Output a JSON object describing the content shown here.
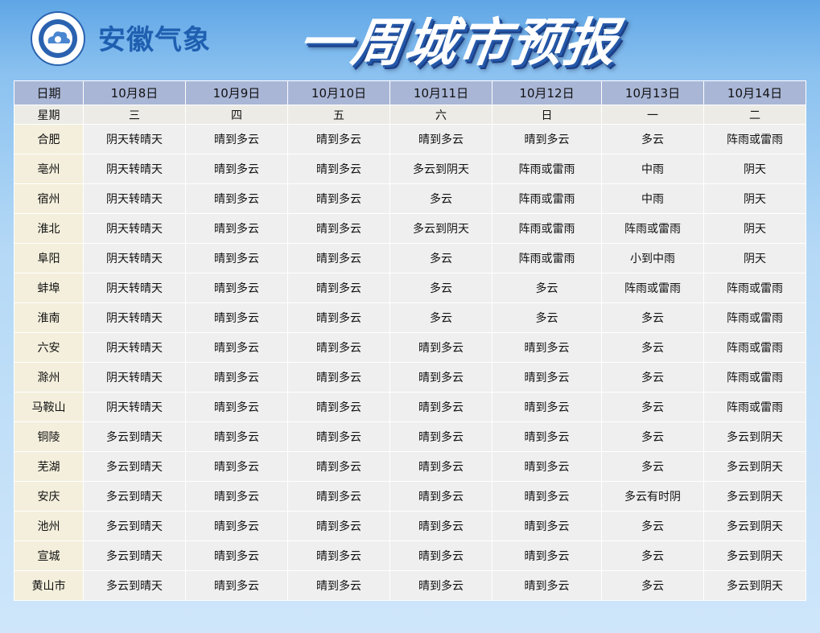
{
  "header": {
    "brand": "安徽气象",
    "title": "一周城市预报"
  },
  "table": {
    "columns": [
      "日期",
      "10月8日",
      "10月9日",
      "10月10日",
      "10月11日",
      "10月12日",
      "10月13日",
      "10月14日"
    ],
    "weekdays": [
      "星期",
      "三",
      "四",
      "五",
      "六",
      "日",
      "一",
      "二"
    ],
    "rows": [
      [
        "合肥",
        "阴天转晴天",
        "晴到多云",
        "晴到多云",
        "晴到多云",
        "晴到多云",
        "多云",
        "阵雨或雷雨"
      ],
      [
        "亳州",
        "阴天转晴天",
        "晴到多云",
        "晴到多云",
        "多云到阴天",
        "阵雨或雷雨",
        "中雨",
        "阴天"
      ],
      [
        "宿州",
        "阴天转晴天",
        "晴到多云",
        "晴到多云",
        "多云",
        "阵雨或雷雨",
        "中雨",
        "阴天"
      ],
      [
        "淮北",
        "阴天转晴天",
        "晴到多云",
        "晴到多云",
        "多云到阴天",
        "阵雨或雷雨",
        "阵雨或雷雨",
        "阴天"
      ],
      [
        "阜阳",
        "阴天转晴天",
        "晴到多云",
        "晴到多云",
        "多云",
        "阵雨或雷雨",
        "小到中雨",
        "阴天"
      ],
      [
        "蚌埠",
        "阴天转晴天",
        "晴到多云",
        "晴到多云",
        "多云",
        "多云",
        "阵雨或雷雨",
        "阵雨或雷雨"
      ],
      [
        "淮南",
        "阴天转晴天",
        "晴到多云",
        "晴到多云",
        "多云",
        "多云",
        "多云",
        "阵雨或雷雨"
      ],
      [
        "六安",
        "阴天转晴天",
        "晴到多云",
        "晴到多云",
        "晴到多云",
        "晴到多云",
        "多云",
        "阵雨或雷雨"
      ],
      [
        "滁州",
        "阴天转晴天",
        "晴到多云",
        "晴到多云",
        "晴到多云",
        "晴到多云",
        "多云",
        "阵雨或雷雨"
      ],
      [
        "马鞍山",
        "阴天转晴天",
        "晴到多云",
        "晴到多云",
        "晴到多云",
        "晴到多云",
        "多云",
        "阵雨或雷雨"
      ],
      [
        "铜陵",
        "多云到晴天",
        "晴到多云",
        "晴到多云",
        "晴到多云",
        "晴到多云",
        "多云",
        "多云到阴天"
      ],
      [
        "芜湖",
        "多云到晴天",
        "晴到多云",
        "晴到多云",
        "晴到多云",
        "晴到多云",
        "多云",
        "多云到阴天"
      ],
      [
        "安庆",
        "多云到晴天",
        "晴到多云",
        "晴到多云",
        "晴到多云",
        "晴到多云",
        "多云有时阴",
        "多云到阴天"
      ],
      [
        "池州",
        "多云到晴天",
        "晴到多云",
        "晴到多云",
        "晴到多云",
        "晴到多云",
        "多云",
        "多云到阴天"
      ],
      [
        "宣城",
        "多云到晴天",
        "晴到多云",
        "晴到多云",
        "晴到多云",
        "晴到多云",
        "多云",
        "多云到阴天"
      ],
      [
        "黄山市",
        "多云到晴天",
        "晴到多云",
        "晴到多云",
        "晴到多云",
        "晴到多云",
        "多云",
        "多云到阴天"
      ]
    ]
  }
}
